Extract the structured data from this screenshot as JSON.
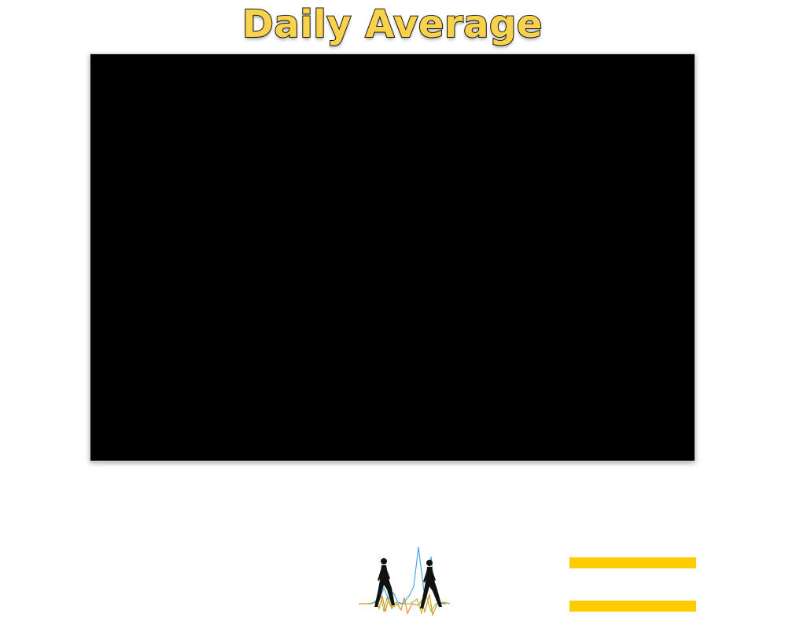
{
  "header": {
    "title": "Daily Average"
  },
  "colors": {
    "title_fill": "#F7D24A",
    "title_outline": "#1a1a1a",
    "video_background": "#000000",
    "accent_bar": "#FFCC00",
    "waveform_blue": "#4AA8E0",
    "waveform_orange": "#F08A2E",
    "waveform_green": "#9BC93C"
  },
  "icons": {
    "logo": "walking-figures-waveform-icon",
    "menu_bars": "menu-bars-icon"
  }
}
